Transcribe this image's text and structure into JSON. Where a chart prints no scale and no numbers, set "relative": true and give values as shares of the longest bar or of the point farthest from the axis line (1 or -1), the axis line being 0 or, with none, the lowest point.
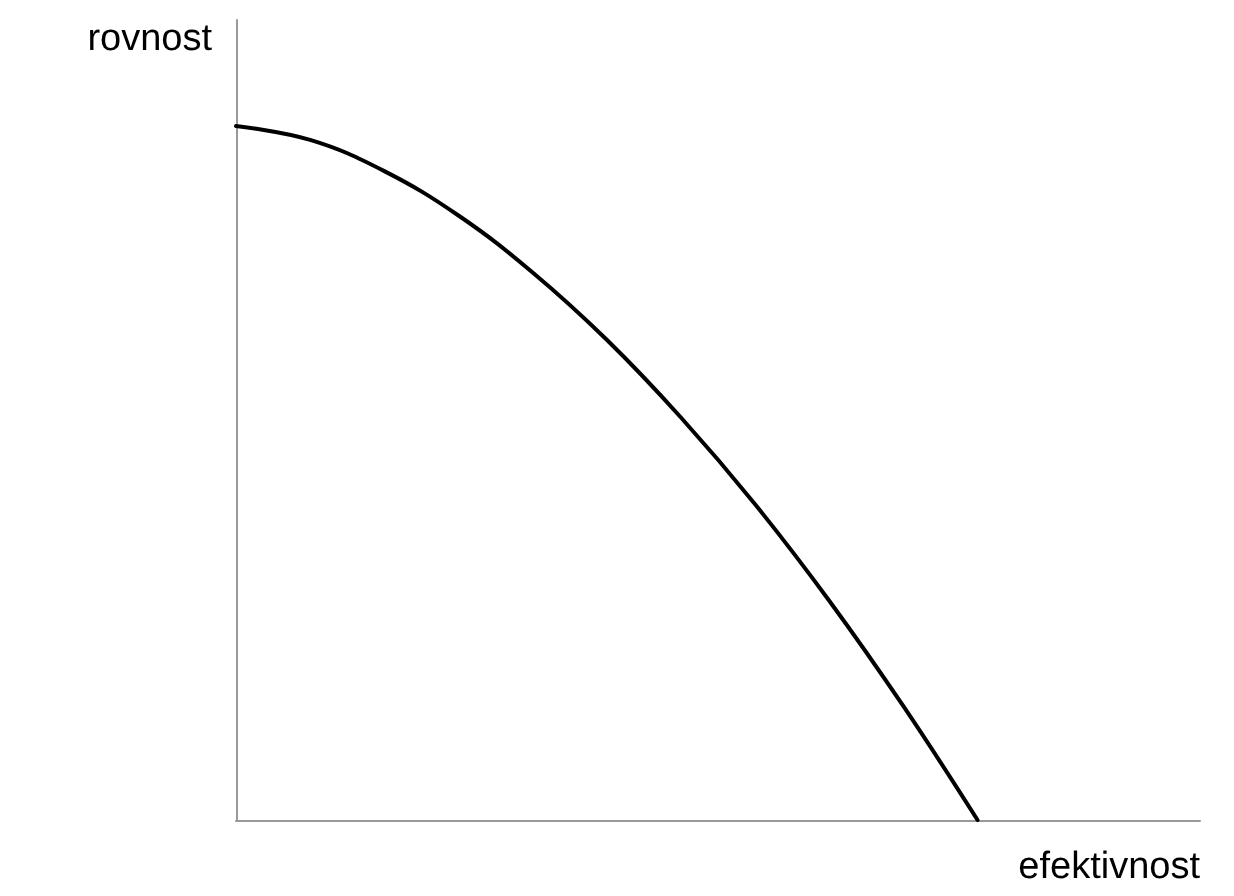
{
  "chart_data": {
    "type": "line",
    "xlabel": "efektivnost",
    "ylabel": "rovnost",
    "relative": true,
    "categories": [
      null,
      null,
      null,
      null,
      null,
      null,
      null,
      null,
      null,
      null,
      null,
      null,
      null,
      null
    ],
    "series": [
      {
        "color": "#000000",
        "values": [
          1,
          0.98,
          0.935,
          0.871,
          0.789,
          0.692,
          0.58,
          0.455,
          0.316,
          0.164,
          0,
          null,
          null,
          null
        ]
      }
    ],
    "marker": "none",
    "line_style": "solid",
    "tick_labels": false
  }
}
